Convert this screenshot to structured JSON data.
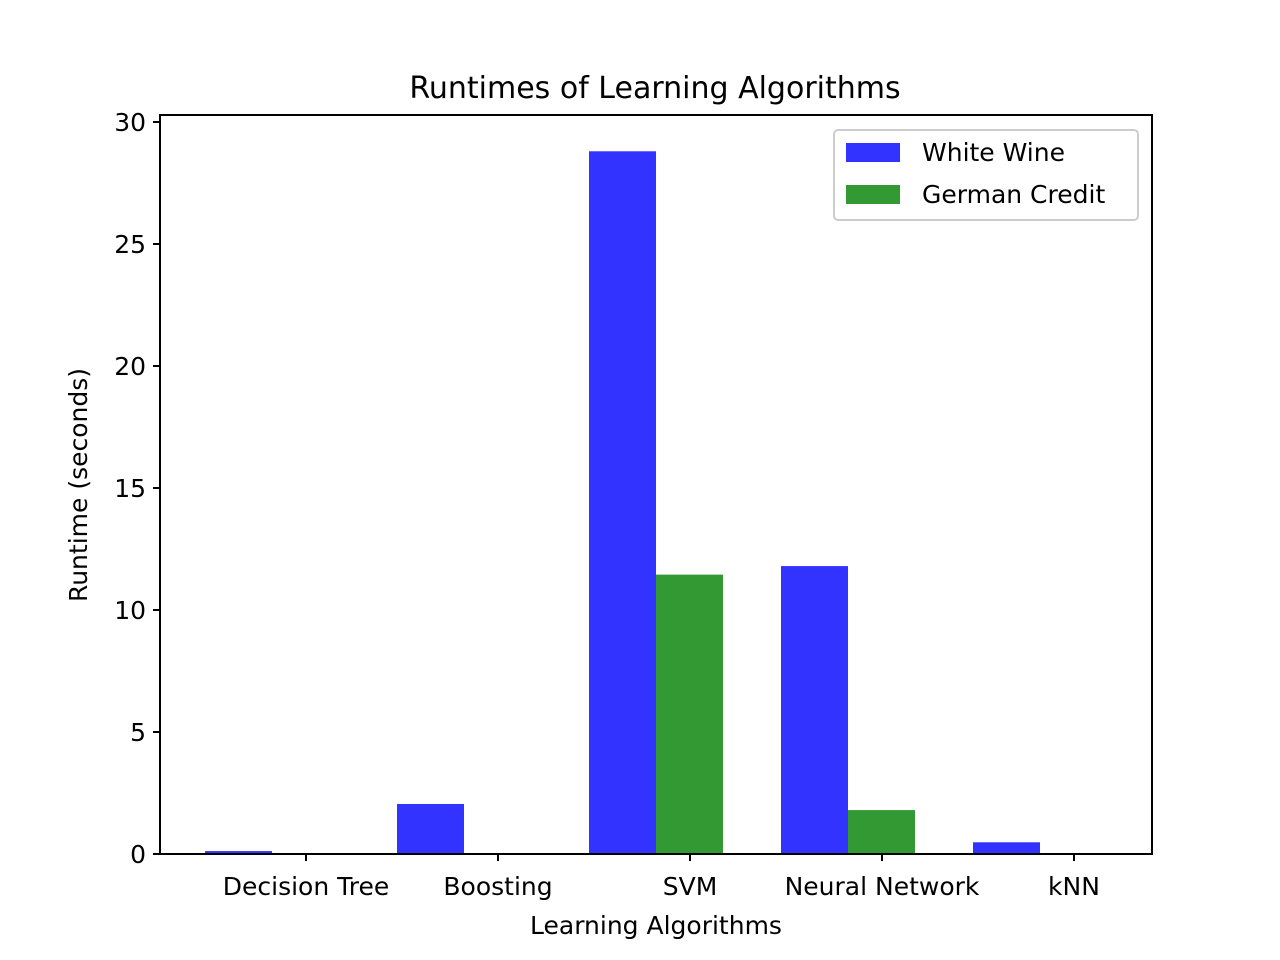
{
  "chart_data": {
    "type": "bar",
    "title": "Runtimes of Learning Algorithms",
    "xlabel": "Learning Algorithms",
    "ylabel": "Runtime (seconds)",
    "categories": [
      "Decision Tree",
      "Boosting",
      "SVM",
      "Neural Network",
      "kNN"
    ],
    "series": [
      {
        "name": "White Wine",
        "color": "#3333ff",
        "values": [
          0.12,
          2.05,
          28.8,
          11.8,
          0.48
        ]
      },
      {
        "name": "German Credit",
        "color": "#339933",
        "values": [
          0.01,
          0.02,
          11.45,
          1.8,
          0.02
        ]
      }
    ],
    "ylim": [
      0,
      30
    ],
    "yticks": [
      "0",
      "5",
      "10",
      "15",
      "20",
      "25",
      "30"
    ],
    "grid": false,
    "legend_position": "top-right"
  }
}
